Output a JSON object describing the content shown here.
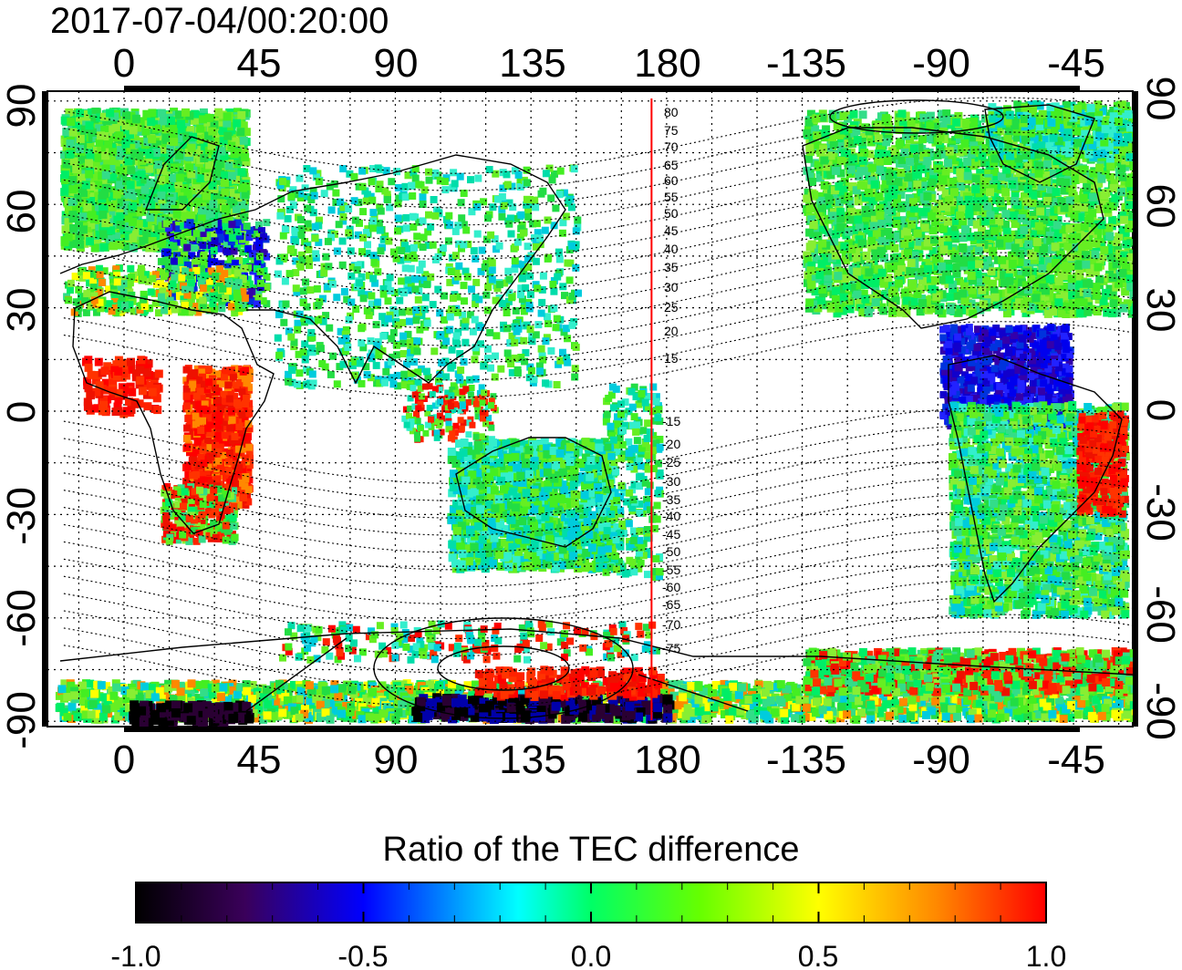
{
  "timestamp": "2017-07-04/00:20:00",
  "top_lon_ticks": [
    "0",
    "45",
    "90",
    "135",
    "180",
    "-135",
    "-90",
    "-45"
  ],
  "bottom_lon_ticks": [
    "0",
    "45",
    "90",
    "135",
    "180",
    "-135",
    "-90",
    "-45"
  ],
  "left_lat_ticks": [
    "90",
    "60",
    "30",
    "0",
    "-30",
    "-60",
    "-90"
  ],
  "right_lat_ticks": [
    "90",
    "60",
    "30",
    "0",
    "-30",
    "-60",
    "-90"
  ],
  "contour_labels_north": [
    "80",
    "75",
    "70",
    "65",
    "60",
    "55",
    "50",
    "45",
    "40",
    "35",
    "30",
    "25",
    "20",
    "15"
  ],
  "contour_labels_south": [
    "-15",
    "-20",
    "-25",
    "-30",
    "-35",
    "-40",
    "-45",
    "-50",
    "-55",
    "-60",
    "-65",
    "-70",
    "-75"
  ],
  "colorbar": {
    "title": "Ratio of the TEC difference",
    "tick_labels": [
      "-1.0",
      "-0.5",
      "0.0",
      "0.5",
      "1.0"
    ],
    "range": [
      -1.0,
      1.0
    ],
    "colors": [
      "#000000",
      "#3a005a",
      "#0000ff",
      "#00ffff",
      "#00ff00",
      "#ffff00",
      "#ff0000"
    ]
  },
  "map": {
    "meridian_marker_lon": 175,
    "meridian_marker_color": "#ff0000",
    "frame_color": "#000000"
  }
}
